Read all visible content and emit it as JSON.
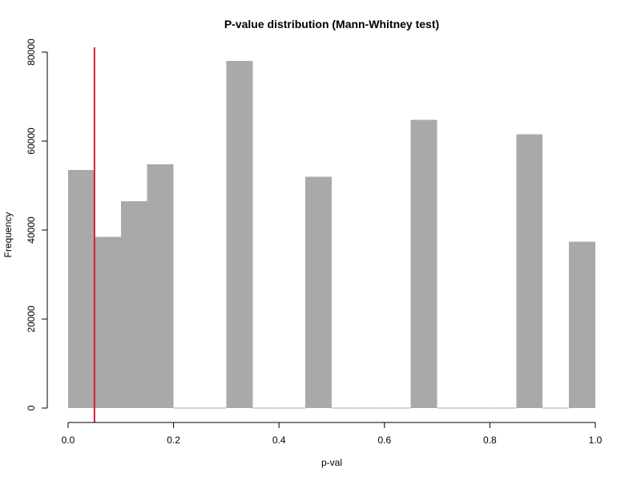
{
  "chart_data": {
    "type": "bar",
    "title": "P-value distribution (Mann-Whitney test)",
    "xlabel": "p-val",
    "ylabel": "Frequency",
    "xlim": [
      0,
      1
    ],
    "ylim": [
      0,
      80000
    ],
    "x_ticks": [
      0.0,
      0.2,
      0.4,
      0.6,
      0.8,
      1.0
    ],
    "x_tick_labels": [
      "0.0",
      "0.2",
      "0.4",
      "0.6",
      "0.8",
      "1.0"
    ],
    "y_ticks": [
      0,
      20000,
      40000,
      60000,
      80000
    ],
    "y_tick_labels": [
      "0",
      "20000",
      "40000",
      "60000",
      "80000"
    ],
    "bin_edges": [
      0.0,
      0.05,
      0.1,
      0.15,
      0.2,
      0.25,
      0.3,
      0.35,
      0.4,
      0.45,
      0.5,
      0.55,
      0.6,
      0.65,
      0.7,
      0.75,
      0.8,
      0.85,
      0.9,
      0.95,
      1.0
    ],
    "values": [
      53500,
      38500,
      46500,
      54800,
      0,
      0,
      78000,
      0,
      0,
      52000,
      0,
      0,
      0,
      64800,
      0,
      0,
      0,
      61500,
      0,
      37400
    ],
    "bar_color": "#a9a9a9",
    "reference_line": {
      "x": 0.05,
      "color": "#d62031"
    },
    "grid": false,
    "legend": "none"
  }
}
